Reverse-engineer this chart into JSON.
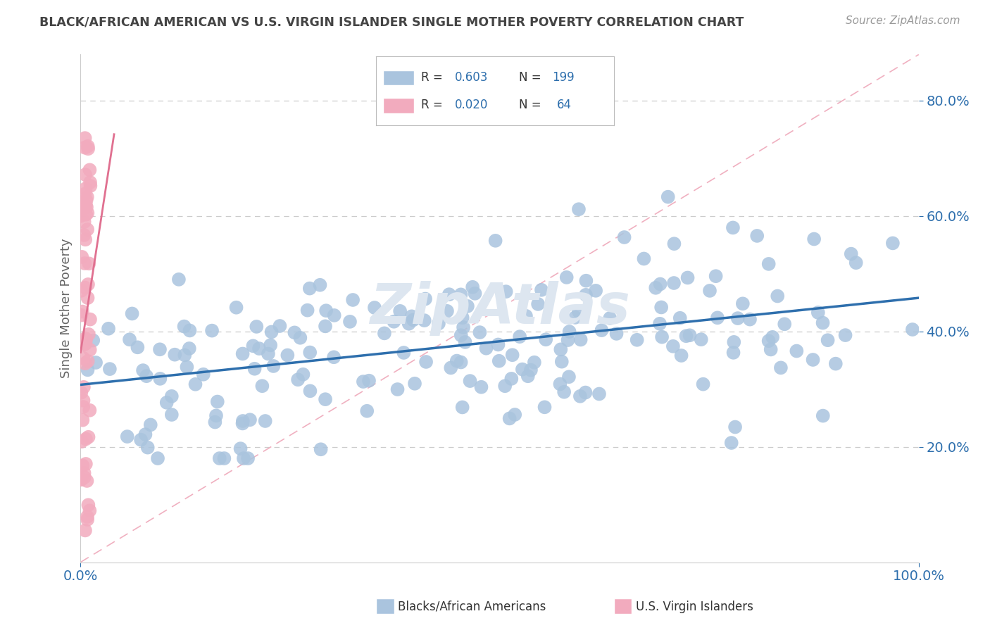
{
  "title": "BLACK/AFRICAN AMERICAN VS U.S. VIRGIN ISLANDER SINGLE MOTHER POVERTY CORRELATION CHART",
  "source": "Source: ZipAtlas.com",
  "ylabel": "Single Mother Poverty",
  "xlabel": "",
  "blue_R": 0.603,
  "blue_N": 199,
  "pink_R": 0.02,
  "pink_N": 64,
  "blue_color": "#aac4de",
  "pink_color": "#f2abbe",
  "blue_line_color": "#2e6fad",
  "pink_line_color": "#e07090",
  "diagonal_color": "#f0b0c0",
  "legend_R_color": "#2e6fad",
  "legend_N_color": "#2e6fad",
  "title_color": "#444444",
  "axis_label_color": "#666666",
  "tick_label_color": "#2e6fad",
  "watermark": "ZipAtlas",
  "watermark_color": "#dde6f0",
  "background_color": "#ffffff",
  "xlim": [
    0.0,
    1.0
  ],
  "ylim": [
    0.0,
    0.88
  ],
  "y_ticks": [
    0.2,
    0.4,
    0.6,
    0.8
  ],
  "y_tick_labels": [
    "20.0%",
    "40.0%",
    "60.0%",
    "80.0%"
  ],
  "x_ticks": [
    0.0,
    1.0
  ],
  "x_tick_labels": [
    "0.0%",
    "100.0%"
  ],
  "legend_labels": [
    "Blacks/African Americans",
    "U.S. Virgin Islanders"
  ],
  "blue_seed": 12,
  "pink_seed": 7
}
